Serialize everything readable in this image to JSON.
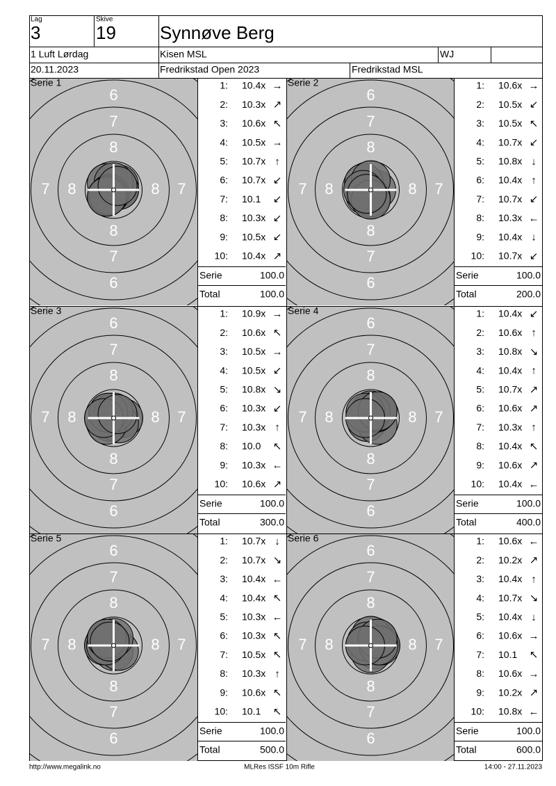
{
  "header": {
    "lag_label": "Lag",
    "lag": "3",
    "skive_label": "Skive",
    "skive": "19",
    "name": "Synnøve Berg",
    "class": "1 Luft Lørdag",
    "club": "Kisen MSL",
    "code": "WJ",
    "date": "20.11.2023",
    "event": "Fredrikstad Open 2023",
    "organizer": "Fredrikstad MSL"
  },
  "target": {
    "ring_labels": [
      "6",
      "7",
      "8"
    ]
  },
  "series": [
    {
      "title": "Serie 1",
      "serie_label": "Serie",
      "serie": "100.0",
      "total_label": "Total",
      "total": "100.0",
      "shots": [
        {
          "n": "1:",
          "score": "10.4x",
          "arrow": "→"
        },
        {
          "n": "2:",
          "score": "10.3x",
          "arrow": "↗"
        },
        {
          "n": "3:",
          "score": "10.6x",
          "arrow": "↖"
        },
        {
          "n": "4:",
          "score": "10.5x",
          "arrow": "→"
        },
        {
          "n": "5:",
          "score": "10.7x",
          "arrow": "↑"
        },
        {
          "n": "6:",
          "score": "10.7x",
          "arrow": "↙"
        },
        {
          "n": "7:",
          "score": "10.1",
          "arrow": "↙"
        },
        {
          "n": "8:",
          "score": "10.3x",
          "arrow": "↙"
        },
        {
          "n": "9:",
          "score": "10.5x",
          "arrow": "↙"
        },
        {
          "n": "10:",
          "score": "10.4x",
          "arrow": "↗"
        }
      ]
    },
    {
      "title": "Serie 2",
      "serie_label": "Serie",
      "serie": "100.0",
      "total_label": "Total",
      "total": "200.0",
      "shots": [
        {
          "n": "1:",
          "score": "10.6x",
          "arrow": "→"
        },
        {
          "n": "2:",
          "score": "10.5x",
          "arrow": "↙"
        },
        {
          "n": "3:",
          "score": "10.5x",
          "arrow": "↖"
        },
        {
          "n": "4:",
          "score": "10.7x",
          "arrow": "↙"
        },
        {
          "n": "5:",
          "score": "10.8x",
          "arrow": "↓"
        },
        {
          "n": "6:",
          "score": "10.4x",
          "arrow": "↑"
        },
        {
          "n": "7:",
          "score": "10.7x",
          "arrow": "↙"
        },
        {
          "n": "8:",
          "score": "10.3x",
          "arrow": "←"
        },
        {
          "n": "9:",
          "score": "10.4x",
          "arrow": "↓"
        },
        {
          "n": "10:",
          "score": "10.7x",
          "arrow": "↙"
        }
      ]
    },
    {
      "title": "Serie 3",
      "serie_label": "Serie",
      "serie": "100.0",
      "total_label": "Total",
      "total": "300.0",
      "shots": [
        {
          "n": "1:",
          "score": "10.9x",
          "arrow": "→"
        },
        {
          "n": "2:",
          "score": "10.6x",
          "arrow": "↖"
        },
        {
          "n": "3:",
          "score": "10.5x",
          "arrow": "→"
        },
        {
          "n": "4:",
          "score": "10.5x",
          "arrow": "↙"
        },
        {
          "n": "5:",
          "score": "10.8x",
          "arrow": "↘"
        },
        {
          "n": "6:",
          "score": "10.3x",
          "arrow": "↙"
        },
        {
          "n": "7:",
          "score": "10.3x",
          "arrow": "↑"
        },
        {
          "n": "8:",
          "score": "10.0",
          "arrow": "↖"
        },
        {
          "n": "9:",
          "score": "10.3x",
          "arrow": "←"
        },
        {
          "n": "10:",
          "score": "10.6x",
          "arrow": "↗"
        }
      ]
    },
    {
      "title": "Serie 4",
      "serie_label": "Serie",
      "serie": "100.0",
      "total_label": "Total",
      "total": "400.0",
      "shots": [
        {
          "n": "1:",
          "score": "10.4x",
          "arrow": "↙"
        },
        {
          "n": "2:",
          "score": "10.6x",
          "arrow": "↑"
        },
        {
          "n": "3:",
          "score": "10.8x",
          "arrow": "↘"
        },
        {
          "n": "4:",
          "score": "10.4x",
          "arrow": "↑"
        },
        {
          "n": "5:",
          "score": "10.7x",
          "arrow": "↗"
        },
        {
          "n": "6:",
          "score": "10.6x",
          "arrow": "↗"
        },
        {
          "n": "7:",
          "score": "10.3x",
          "arrow": "↑"
        },
        {
          "n": "8:",
          "score": "10.4x",
          "arrow": "↖"
        },
        {
          "n": "9:",
          "score": "10.6x",
          "arrow": "↗"
        },
        {
          "n": "10:",
          "score": "10.4x",
          "arrow": "←"
        }
      ]
    },
    {
      "title": "Serie 5",
      "serie_label": "Serie",
      "serie": "100.0",
      "total_label": "Total",
      "total": "500.0",
      "shots": [
        {
          "n": "1:",
          "score": "10.7x",
          "arrow": "↓"
        },
        {
          "n": "2:",
          "score": "10.7x",
          "arrow": "↘"
        },
        {
          "n": "3:",
          "score": "10.4x",
          "arrow": "←"
        },
        {
          "n": "4:",
          "score": "10.4x",
          "arrow": "↖"
        },
        {
          "n": "5:",
          "score": "10.3x",
          "arrow": "←"
        },
        {
          "n": "6:",
          "score": "10.3x",
          "arrow": "↖"
        },
        {
          "n": "7:",
          "score": "10.5x",
          "arrow": "↖"
        },
        {
          "n": "8:",
          "score": "10.3x",
          "arrow": "↑"
        },
        {
          "n": "9:",
          "score": "10.6x",
          "arrow": "↖"
        },
        {
          "n": "10:",
          "score": "10.1",
          "arrow": "↖"
        }
      ]
    },
    {
      "title": "Serie 6",
      "serie_label": "Serie",
      "serie": "100.0",
      "total_label": "Total",
      "total": "600.0",
      "shots": [
        {
          "n": "1:",
          "score": "10.6x",
          "arrow": "←"
        },
        {
          "n": "2:",
          "score": "10.2x",
          "arrow": "↗"
        },
        {
          "n": "3:",
          "score": "10.4x",
          "arrow": "↑"
        },
        {
          "n": "4:",
          "score": "10.7x",
          "arrow": "↘"
        },
        {
          "n": "5:",
          "score": "10.4x",
          "arrow": "↓"
        },
        {
          "n": "6:",
          "score": "10.6x",
          "arrow": "→"
        },
        {
          "n": "7:",
          "score": "10.1",
          "arrow": "↖"
        },
        {
          "n": "8:",
          "score": "10.6x",
          "arrow": "→"
        },
        {
          "n": "9:",
          "score": "10.2x",
          "arrow": "↗"
        },
        {
          "n": "10:",
          "score": "10.8x",
          "arrow": "←"
        }
      ]
    }
  ],
  "footer": {
    "url": "http://www.megalink.no",
    "program": "MLRes ISSF 10m Rifle",
    "timestamp": "14:00 - 27.11.2023"
  }
}
